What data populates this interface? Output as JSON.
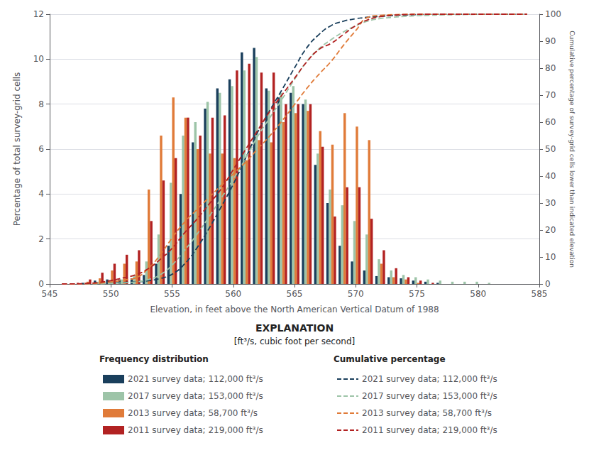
{
  "chart_data": {
    "type": "bar",
    "xlabel": "Elevation, in feet above the North American Vertical Datum of 1988",
    "ylabel": "Percentage of total survey-grid cells",
    "y2label": "Cumulative percentage of survey-grid cells lower than indicated elevation",
    "xlim": [
      545,
      585
    ],
    "ylim": [
      0,
      12
    ],
    "y2lim": [
      0,
      100
    ],
    "xticks": [
      545,
      550,
      555,
      560,
      565,
      570,
      575,
      580,
      585
    ],
    "yticks": [
      0,
      2,
      4,
      6,
      8,
      10,
      12
    ],
    "y2ticks": [
      0,
      10,
      20,
      30,
      40,
      50,
      60,
      70,
      80,
      90,
      100
    ],
    "grid": true,
    "legend": "bottom",
    "legend_title": "EXPLANATION",
    "legend_subtitle": "[ft³/s, cubic foot per second]",
    "legend_columns": {
      "bar": "Frequency distribution",
      "line": "Cumulative percentage"
    },
    "x": [
      546,
      547,
      548,
      549,
      550,
      551,
      552,
      553,
      554,
      555,
      556,
      557,
      558,
      559,
      560,
      561,
      562,
      563,
      564,
      565,
      566,
      567,
      568,
      569,
      570,
      571,
      572,
      573,
      574,
      575,
      576,
      577,
      578,
      579,
      580,
      581,
      582,
      583,
      584
    ],
    "series": [
      {
        "name": "2021 survey data; 112,000 ft³/s",
        "type": "bar",
        "axis": "y",
        "color": "#1a3f5c",
        "values": [
          0.0,
          0.0,
          0.05,
          0.15,
          0.2,
          0.2,
          0.25,
          0.4,
          0.9,
          1.7,
          4.0,
          6.3,
          7.8,
          8.7,
          9.1,
          10.3,
          10.5,
          8.7,
          8.3,
          8.5,
          8.0,
          5.3,
          3.6,
          1.7,
          1.0,
          0.6,
          0.35,
          0.3,
          0.25,
          0.15,
          0.1,
          0.05,
          0.0,
          0.0,
          0.0,
          0.0,
          0.0,
          0.0,
          0.0
        ]
      },
      {
        "name": "2017 survey data; 153,000 ft³/s",
        "type": "bar",
        "axis": "y",
        "color": "#9dc4a8",
        "values": [
          0.0,
          0.0,
          0.05,
          0.1,
          0.15,
          0.2,
          0.4,
          1.0,
          2.2,
          4.5,
          6.6,
          7.2,
          8.1,
          8.5,
          8.8,
          9.5,
          10.1,
          8.6,
          8.5,
          8.8,
          8.2,
          5.8,
          4.2,
          3.5,
          2.8,
          2.2,
          1.1,
          0.6,
          0.4,
          0.3,
          0.2,
          0.15,
          0.1,
          0.1,
          0.1,
          0.05,
          0.0,
          0.0,
          0.0
        ]
      },
      {
        "name": "2013 survey data; 58,700 ft³/s",
        "type": "bar",
        "axis": "y",
        "color": "#e07b39",
        "values": [
          0.0,
          0.0,
          0.1,
          0.25,
          0.6,
          0.9,
          1.0,
          4.2,
          6.6,
          8.3,
          7.4,
          6.0,
          5.8,
          5.8,
          5.6,
          5.5,
          6.4,
          6.3,
          7.2,
          7.6,
          7.7,
          6.8,
          6.2,
          7.6,
          7.0,
          6.4,
          0.9,
          0.3,
          0.2,
          0.05,
          0.0,
          0.0,
          0.0,
          0.0,
          0.0,
          0.0,
          0.0,
          0.0,
          0.0
        ]
      },
      {
        "name": "2011 survey data; 219,000 ft³/s",
        "type": "bar",
        "axis": "y",
        "color": "#b22222",
        "values": [
          0.0,
          0.05,
          0.2,
          0.5,
          0.9,
          1.3,
          1.5,
          2.8,
          4.6,
          5.6,
          7.4,
          6.6,
          7.4,
          7.5,
          9.5,
          9.8,
          9.4,
          9.4,
          8.0,
          8.0,
          8.0,
          6.1,
          3.0,
          4.3,
          4.3,
          2.9,
          1.5,
          0.7,
          0.3,
          0.15,
          0.05,
          0.0,
          0.0,
          0.0,
          0.0,
          0.0,
          0.0,
          0.0,
          0.0
        ]
      },
      {
        "name": "2021 survey data; 112,000 ft³/s",
        "type": "line",
        "axis": "y2",
        "color": "#1a3f5c",
        "line_style": "dashed",
        "values": [
          0,
          0,
          0.05,
          0.19,
          0.37,
          0.56,
          0.79,
          1.16,
          2.0,
          3.58,
          7.31,
          13.17,
          20.43,
          28.52,
          36.99,
          46.58,
          56.35,
          64.45,
          72.17,
          80.08,
          87.53,
          92.46,
          95.81,
          97.39,
          98.32,
          98.88,
          99.21,
          99.49,
          99.72,
          99.86,
          99.95,
          100,
          100,
          100,
          100,
          100,
          100,
          100,
          100
        ]
      },
      {
        "name": "2017 survey data; 153,000 ft³/s",
        "type": "line",
        "axis": "y2",
        "color": "#9dc4a8",
        "line_style": "dashed",
        "values": [
          0,
          0,
          0.04,
          0.12,
          0.24,
          0.41,
          0.73,
          1.54,
          3.33,
          6.99,
          12.35,
          18.2,
          24.78,
          31.68,
          38.83,
          46.55,
          54.75,
          61.74,
          68.64,
          75.79,
          82.45,
          87.16,
          90.58,
          93.42,
          95.69,
          97.48,
          98.38,
          98.86,
          99.19,
          99.43,
          99.59,
          99.72,
          99.8,
          99.88,
          99.96,
          100,
          100,
          100,
          100
        ]
      },
      {
        "name": "2013 survey data; 58,700 ft³/s",
        "type": "line",
        "axis": "y2",
        "color": "#e07b39",
        "line_style": "dashed",
        "values": [
          0,
          0,
          0.08,
          0.27,
          0.74,
          1.44,
          2.21,
          5.48,
          10.61,
          17.06,
          22.8,
          27.47,
          31.97,
          36.48,
          40.83,
          45.1,
          50.08,
          54.97,
          60.57,
          66.47,
          72.46,
          77.74,
          82.56,
          88.46,
          93.9,
          98.87,
          99.57,
          99.81,
          99.96,
          100,
          100,
          100,
          100,
          100,
          100,
          100,
          100,
          100,
          100
        ]
      },
      {
        "name": "2011 survey data; 219,000 ft³/s",
        "type": "line",
        "axis": "y2",
        "color": "#b22222",
        "line_style": "dashed",
        "values": [
          0,
          0.04,
          0.19,
          0.57,
          1.25,
          2.24,
          3.38,
          5.5,
          8.99,
          13.24,
          18.86,
          23.87,
          29.49,
          35.18,
          42.39,
          49.83,
          56.96,
          64.1,
          70.17,
          76.24,
          82.31,
          86.94,
          89.22,
          92.49,
          95.75,
          97.95,
          99.09,
          99.62,
          99.85,
          99.96,
          100,
          100,
          100,
          100,
          100,
          100,
          100,
          100,
          100
        ]
      }
    ]
  }
}
